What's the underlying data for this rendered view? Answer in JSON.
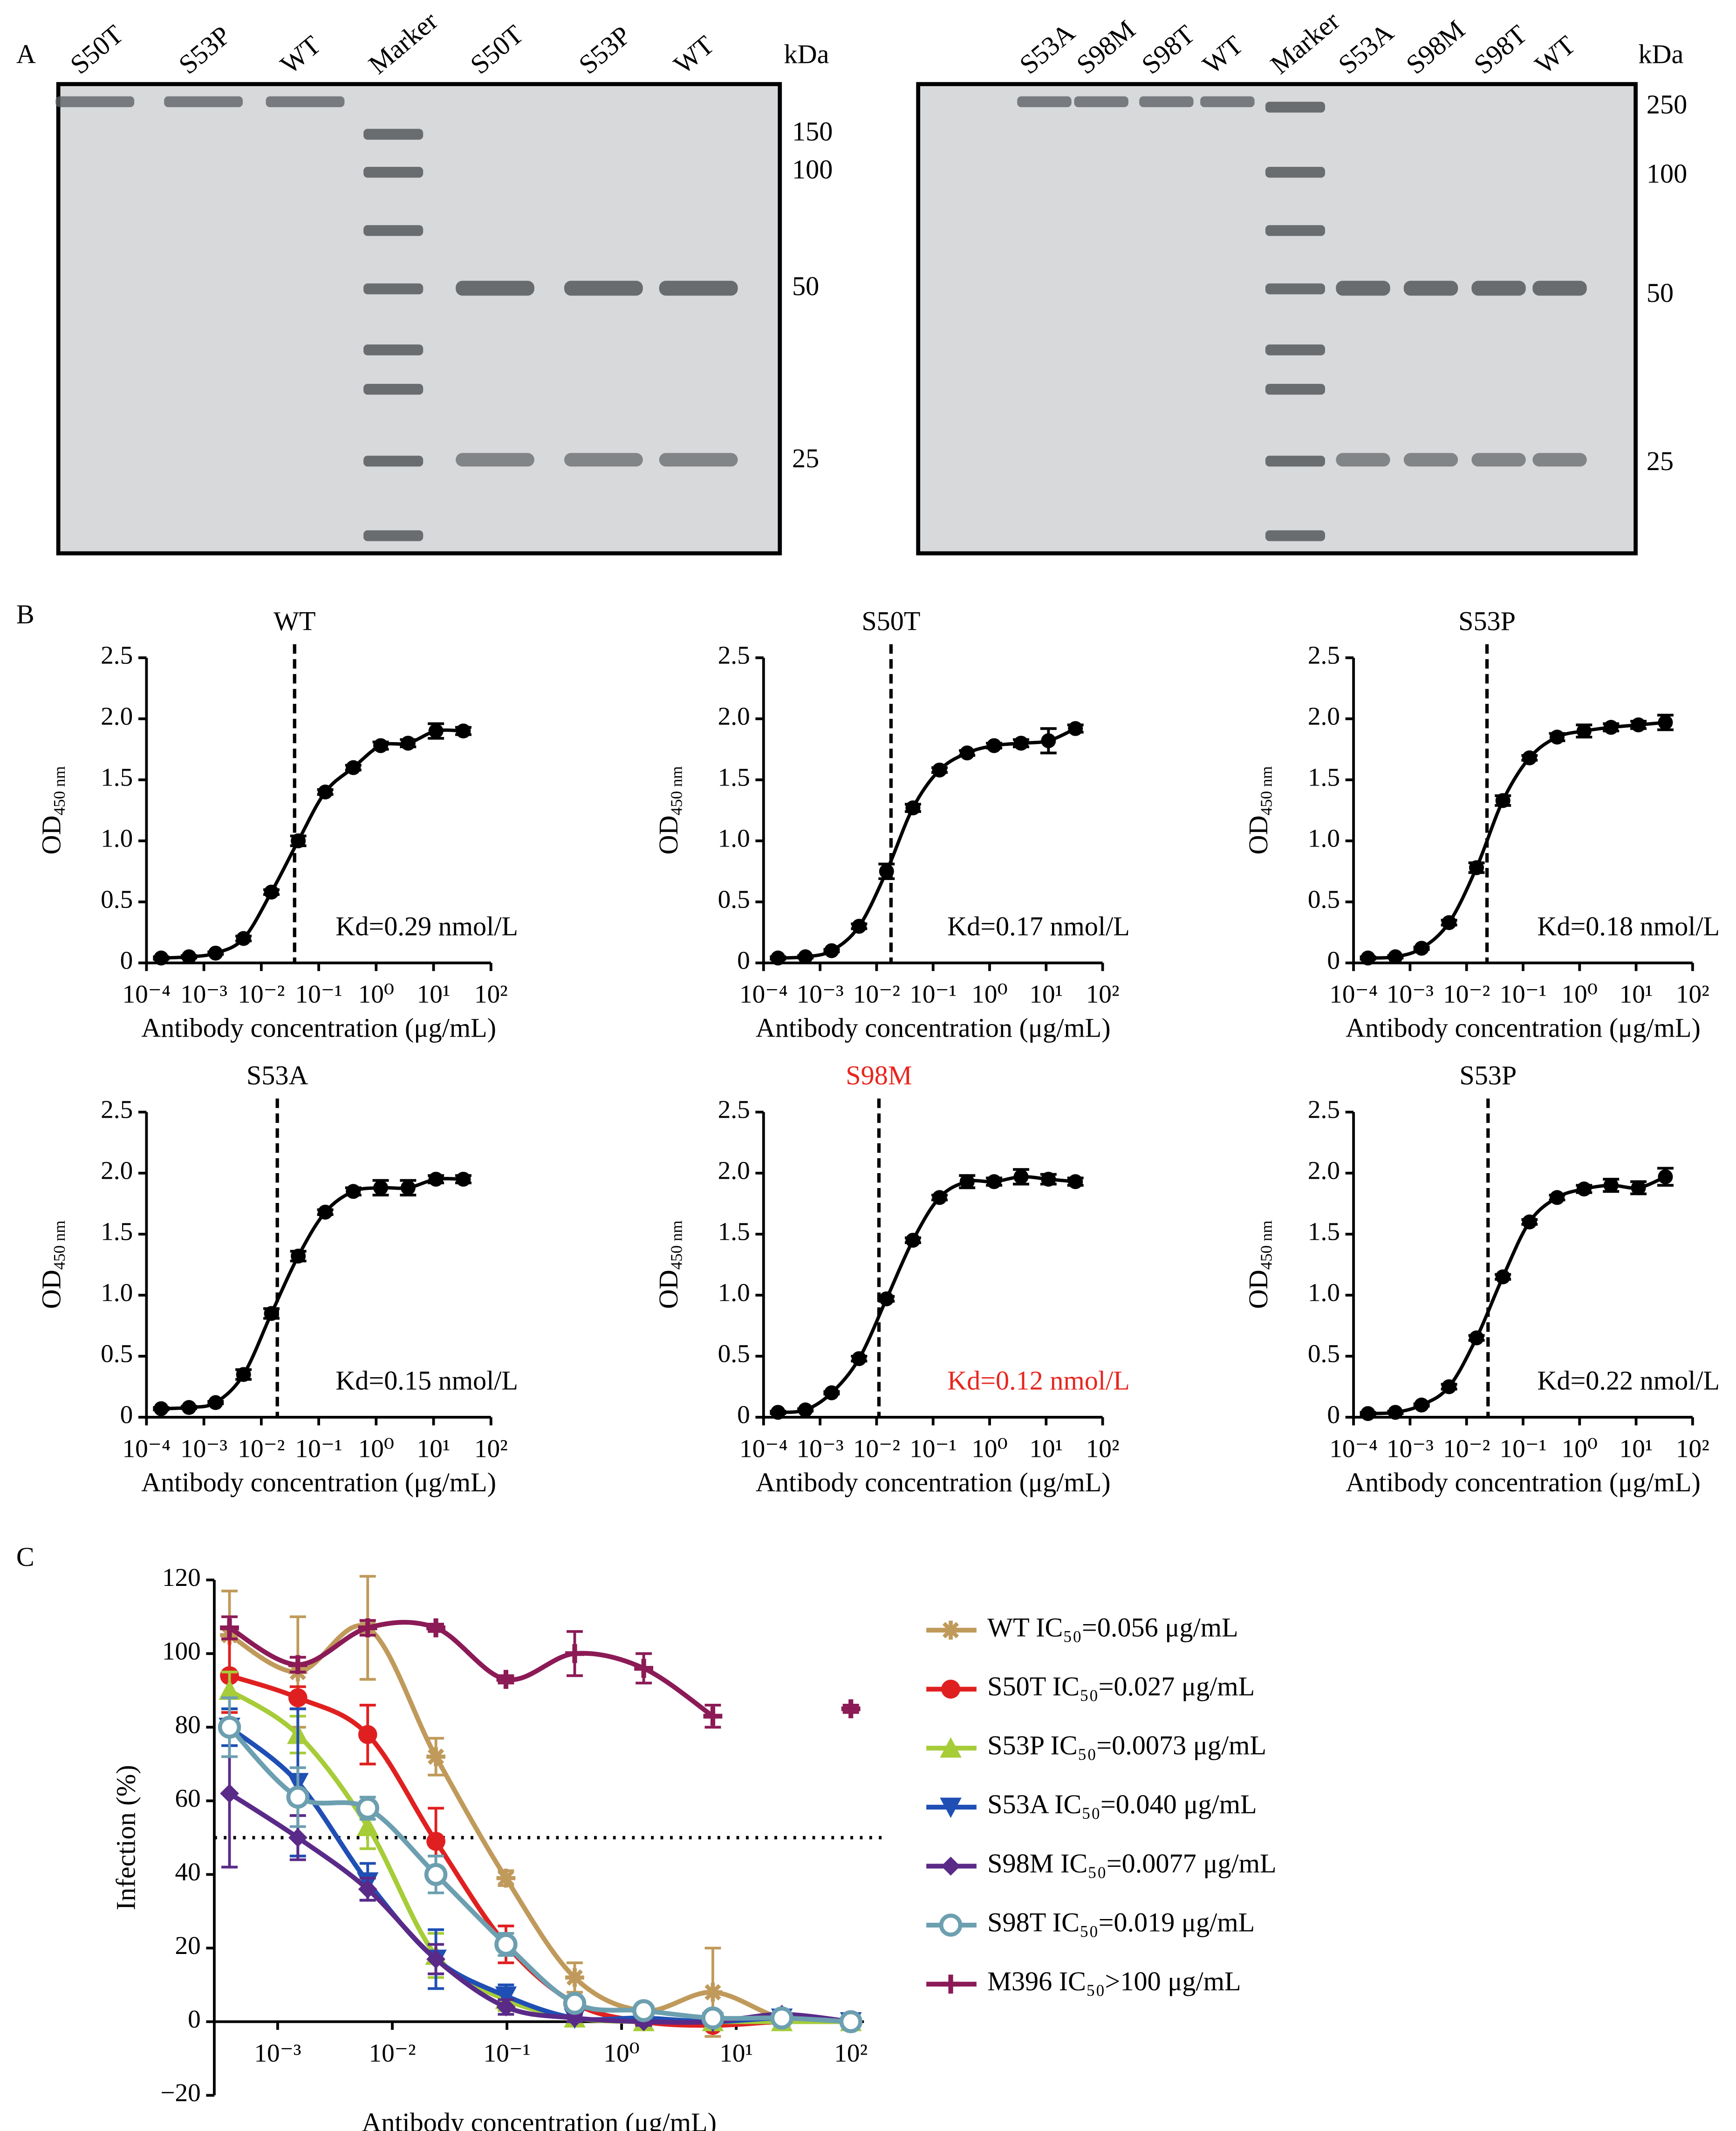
{
  "panel_labels": [
    "A",
    "B",
    "C"
  ],
  "gels": [
    {
      "lanes": [
        "S50T",
        "S53P",
        "WT",
        "Marker",
        "S50T",
        "S53P",
        "WT"
      ],
      "unit": "kDa",
      "markers": [
        150,
        100,
        50,
        25
      ]
    },
    {
      "lanes": [
        "S53A",
        "S98M",
        "S98T",
        "WT",
        "Marker",
        "S53A",
        "S98M",
        "S98T",
        "WT"
      ],
      "unit": "kDa",
      "markers": [
        250,
        100,
        50,
        25
      ]
    }
  ],
  "chart_data": [
    {
      "type": "line",
      "title": "WT",
      "text_color": "#000000",
      "annotation": "Kd=0.29 nmol/L",
      "xlabel": "Antibody concentration (μg/mL)",
      "ylabel": "OD",
      "ylabel_subscript": "450 nm",
      "log_x": true,
      "xlim": [
        0.0001,
        100
      ],
      "xticks": [
        {
          "value": 0.0001,
          "label": "10⁻⁴"
        },
        {
          "value": 0.001,
          "label": "10⁻³"
        },
        {
          "value": 0.01,
          "label": "10⁻²"
        },
        {
          "value": 0.1,
          "label": "10⁻¹"
        },
        {
          "value": 1,
          "label": "10⁰"
        },
        {
          "value": 10,
          "label": "10¹"
        },
        {
          "value": 100,
          "label": "10²"
        }
      ],
      "ylim": [
        0,
        2.5
      ],
      "yticks": [
        0,
        0.5,
        {
          "value": 1,
          "label": "1.0"
        },
        1.5,
        {
          "value": 2,
          "label": "2.0"
        },
        2.5
      ],
      "vline": 0.038,
      "color": "#000000",
      "marker": "dot",
      "x": [
        0.00018,
        0.00055,
        0.0016,
        0.0049,
        0.015,
        0.044,
        0.13,
        0.4,
        1.2,
        3.6,
        11,
        33
      ],
      "values": [
        0.04,
        0.05,
        0.08,
        0.2,
        0.58,
        1.0,
        1.4,
        1.6,
        1.78,
        1.8,
        1.9,
        1.9
      ],
      "errors": [
        0.01,
        0.01,
        0.01,
        0.02,
        0.02,
        0.04,
        0.02,
        0.02,
        0.03,
        0.03,
        0.06,
        0.03
      ]
    },
    {
      "type": "line",
      "title": "S50T",
      "text_color": "#000000",
      "annotation": "Kd=0.17 nmol/L",
      "xlabel": "Antibody concentration (μg/mL)",
      "ylabel": "OD",
      "ylabel_subscript": "450 nm",
      "log_x": true,
      "xlim": [
        0.0001,
        100
      ],
      "xticks": [
        {
          "value": 0.0001,
          "label": "10⁻⁴"
        },
        {
          "value": 0.001,
          "label": "10⁻³"
        },
        {
          "value": 0.01,
          "label": "10⁻²"
        },
        {
          "value": 0.1,
          "label": "10⁻¹"
        },
        {
          "value": 1,
          "label": "10⁰"
        },
        {
          "value": 10,
          "label": "10¹"
        },
        {
          "value": 100,
          "label": "10²"
        }
      ],
      "ylim": [
        0,
        2.5
      ],
      "yticks": [
        0,
        0.5,
        {
          "value": 1,
          "label": "1.0"
        },
        1.5,
        {
          "value": 2,
          "label": "2.0"
        },
        2.5
      ],
      "vline": 0.018,
      "color": "#000000",
      "marker": "dot",
      "x": [
        0.00018,
        0.00055,
        0.0016,
        0.0049,
        0.015,
        0.044,
        0.13,
        0.4,
        1.2,
        3.6,
        11,
        33
      ],
      "values": [
        0.04,
        0.05,
        0.1,
        0.3,
        0.75,
        1.27,
        1.58,
        1.72,
        1.78,
        1.8,
        1.82,
        1.92
      ],
      "errors": [
        0.01,
        0.01,
        0.01,
        0.02,
        0.06,
        0.03,
        0.02,
        0.02,
        0.02,
        0.03,
        0.1,
        0.03
      ]
    },
    {
      "type": "line",
      "title": "S53P",
      "text_color": "#000000",
      "annotation": "Kd=0.18 nmol/L",
      "xlabel": "Antibody concentration (μg/mL)",
      "ylabel": "OD",
      "ylabel_subscript": "450 nm",
      "log_x": true,
      "xlim": [
        0.0001,
        100
      ],
      "xticks": [
        {
          "value": 0.0001,
          "label": "10⁻⁴"
        },
        {
          "value": 0.001,
          "label": "10⁻³"
        },
        {
          "value": 0.01,
          "label": "10⁻²"
        },
        {
          "value": 0.1,
          "label": "10⁻¹"
        },
        {
          "value": 1,
          "label": "10⁰"
        },
        {
          "value": 10,
          "label": "10¹"
        },
        {
          "value": 100,
          "label": "10²"
        }
      ],
      "ylim": [
        0,
        2.5
      ],
      "yticks": [
        0,
        0.5,
        {
          "value": 1,
          "label": "1.0"
        },
        1.5,
        {
          "value": 2,
          "label": "2.0"
        },
        2.5
      ],
      "vline": 0.023,
      "color": "#000000",
      "marker": "dot",
      "x": [
        0.00018,
        0.00055,
        0.0016,
        0.0049,
        0.015,
        0.044,
        0.13,
        0.4,
        1.2,
        3.6,
        11,
        33
      ],
      "values": [
        0.04,
        0.05,
        0.12,
        0.33,
        0.78,
        1.33,
        1.68,
        1.85,
        1.9,
        1.93,
        1.95,
        1.97
      ],
      "errors": [
        0.01,
        0.01,
        0.01,
        0.02,
        0.04,
        0.04,
        0.02,
        0.03,
        0.05,
        0.03,
        0.03,
        0.06
      ]
    },
    {
      "type": "line",
      "title": "S53A",
      "text_color": "#000000",
      "annotation": "Kd=0.15 nmol/L",
      "xlabel": "Antibody concentration (μg/mL)",
      "ylabel": "OD",
      "ylabel_subscript": "450 nm",
      "log_x": true,
      "xlim": [
        0.0001,
        100
      ],
      "xticks": [
        {
          "value": 0.0001,
          "label": "10⁻⁴"
        },
        {
          "value": 0.001,
          "label": "10⁻³"
        },
        {
          "value": 0.01,
          "label": "10⁻²"
        },
        {
          "value": 0.1,
          "label": "10⁻¹"
        },
        {
          "value": 1,
          "label": "10⁰"
        },
        {
          "value": 10,
          "label": "10¹"
        },
        {
          "value": 100,
          "label": "10²"
        }
      ],
      "ylim": [
        0,
        2.5
      ],
      "yticks": [
        0,
        0.5,
        {
          "value": 1,
          "label": "1.0"
        },
        1.5,
        {
          "value": 2,
          "label": "2.0"
        },
        2.5
      ],
      "vline": 0.019,
      "color": "#000000",
      "marker": "dot",
      "x": [
        0.00018,
        0.00055,
        0.0016,
        0.0049,
        0.015,
        0.044,
        0.13,
        0.4,
        1.2,
        3.6,
        11,
        33
      ],
      "values": [
        0.07,
        0.08,
        0.12,
        0.35,
        0.85,
        1.32,
        1.68,
        1.85,
        1.88,
        1.88,
        1.95,
        1.95
      ],
      "errors": [
        0.01,
        0.01,
        0.01,
        0.04,
        0.04,
        0.04,
        0.02,
        0.03,
        0.06,
        0.06,
        0.03,
        0.03
      ]
    },
    {
      "type": "line",
      "title": "S98M",
      "text_color": "#e8251f",
      "annotation": "Kd=0.12 nmol/L",
      "xlabel": "Antibody concentration (μg/mL)",
      "ylabel": "OD",
      "ylabel_subscript": "450 nm",
      "log_x": true,
      "xlim": [
        0.0001,
        100
      ],
      "xticks": [
        {
          "value": 0.0001,
          "label": "10⁻⁴"
        },
        {
          "value": 0.001,
          "label": "10⁻³"
        },
        {
          "value": 0.01,
          "label": "10⁻²"
        },
        {
          "value": 0.1,
          "label": "10⁻¹"
        },
        {
          "value": 1,
          "label": "10⁰"
        },
        {
          "value": 10,
          "label": "10¹"
        },
        {
          "value": 100,
          "label": "10²"
        }
      ],
      "ylim": [
        0,
        2.5
      ],
      "yticks": [
        0,
        0.5,
        {
          "value": 1,
          "label": "1.0"
        },
        1.5,
        {
          "value": 2,
          "label": "2.0"
        },
        2.5
      ],
      "vline": 0.011,
      "color": "#000000",
      "marker": "dot",
      "x": [
        0.00018,
        0.00055,
        0.0016,
        0.0049,
        0.015,
        0.044,
        0.13,
        0.4,
        1.2,
        3.6,
        11,
        33
      ],
      "values": [
        0.04,
        0.06,
        0.2,
        0.48,
        0.97,
        1.45,
        1.8,
        1.93,
        1.93,
        1.97,
        1.95,
        1.93
      ],
      "errors": [
        0.01,
        0.01,
        0.01,
        0.02,
        0.02,
        0.02,
        0.02,
        0.05,
        0.03,
        0.06,
        0.04,
        0.03
      ]
    },
    {
      "type": "line",
      "title": "S53P",
      "text_color": "#000000",
      "annotation": "Kd=0.22 nmol/L",
      "xlabel": "Antibody concentration (μg/mL)",
      "ylabel": "OD",
      "ylabel_subscript": "450 nm",
      "log_x": true,
      "xlim": [
        0.0001,
        100
      ],
      "xticks": [
        {
          "value": 0.0001,
          "label": "10⁻⁴"
        },
        {
          "value": 0.001,
          "label": "10⁻³"
        },
        {
          "value": 0.01,
          "label": "10⁻²"
        },
        {
          "value": 0.1,
          "label": "10⁻¹"
        },
        {
          "value": 1,
          "label": "10⁰"
        },
        {
          "value": 10,
          "label": "10¹"
        },
        {
          "value": 100,
          "label": "10²"
        }
      ],
      "ylim": [
        0,
        2.5
      ],
      "yticks": [
        0,
        0.5,
        {
          "value": 1,
          "label": "1.0"
        },
        1.5,
        {
          "value": 2,
          "label": "2.0"
        },
        2.5
      ],
      "vline": 0.024,
      "color": "#000000",
      "marker": "dot",
      "x": [
        0.00018,
        0.00055,
        0.0016,
        0.0049,
        0.015,
        0.044,
        0.13,
        0.4,
        1.2,
        3.6,
        11,
        33
      ],
      "values": [
        0.03,
        0.04,
        0.1,
        0.25,
        0.65,
        1.15,
        1.6,
        1.8,
        1.87,
        1.9,
        1.88,
        1.97
      ],
      "errors": [
        0.01,
        0.01,
        0.01,
        0.02,
        0.02,
        0.02,
        0.02,
        0.02,
        0.03,
        0.05,
        0.05,
        0.07
      ]
    },
    {
      "type": "line",
      "xlabel": "Antibody concentration (μg/mL)",
      "ylabel": "Infection (%)",
      "log_x": true,
      "xlim": [
        0.00028,
        130
      ],
      "xticks": [
        {
          "value": 0.001,
          "label": "10⁻³"
        },
        {
          "value": 0.01,
          "label": "10⁻²"
        },
        {
          "value": 0.1,
          "label": "10⁻¹"
        },
        {
          "value": 1,
          "label": "10⁰"
        },
        {
          "value": 10,
          "label": "10¹"
        },
        {
          "value": 100,
          "label": "10²"
        }
      ],
      "ylim": [
        -20,
        120
      ],
      "yticks": [
        {
          "value": -20,
          "label": "−20"
        },
        0,
        20,
        40,
        60,
        80,
        100,
        120
      ],
      "hline": 50,
      "legend": "right",
      "x": [
        0.00038,
        0.0015,
        0.0061,
        0.024,
        0.098,
        0.39,
        1.56,
        6.25,
        25,
        100
      ],
      "series": [
        {
          "name": "WT IC₅₀=0.056 μg/mL",
          "color": "#c09a5b",
          "marker": "asterisk",
          "values": [
            105,
            95,
            107,
            72,
            39,
            12,
            3,
            8,
            1,
            0
          ],
          "errors": [
            12,
            15,
            14,
            5,
            2,
            4,
            2,
            12,
            1,
            1
          ]
        },
        {
          "name": "S50T IC₅₀=0.027 μg/mL",
          "color": "#e02020",
          "marker": "circle",
          "values": [
            94,
            88,
            78,
            49,
            21,
            5,
            0,
            -1,
            0,
            0
          ],
          "errors": [
            10,
            3,
            8,
            9,
            5,
            2,
            1,
            1,
            1,
            1
          ]
        },
        {
          "name": "S53P IC₅₀=0.0073 μg/mL",
          "color": "#a6cc38",
          "marker": "triangle-up",
          "values": [
            90,
            78,
            53,
            18,
            6,
            1,
            0,
            0,
            0,
            0
          ],
          "errors": [
            5,
            5,
            6,
            6,
            3,
            1,
            1,
            1,
            1,
            1
          ]
        },
        {
          "name": "S53A IC₅₀=0.040 μg/mL",
          "color": "#1f4fb5",
          "marker": "triangle-down",
          "values": [
            80,
            65,
            38,
            17,
            7,
            1,
            1,
            0,
            1,
            0
          ],
          "errors": [
            5,
            20,
            5,
            8,
            3,
            1,
            1,
            1,
            1,
            1
          ]
        },
        {
          "name": "S98M IC₅₀=0.0077 μg/mL",
          "color": "#5a2a88",
          "marker": "diamond",
          "values": [
            62,
            50,
            36,
            17,
            4,
            1,
            0,
            0,
            2,
            0
          ],
          "errors": [
            20,
            6,
            3,
            4,
            2,
            1,
            1,
            1,
            1,
            1
          ]
        },
        {
          "name": "S98T IC₅₀=0.019 μg/mL",
          "color": "#6c9fb0",
          "marker": "open-circle",
          "values": [
            80,
            61,
            58,
            40,
            21,
            5,
            3,
            1,
            1,
            0
          ],
          "errors": [
            8,
            8,
            3,
            5,
            3,
            2,
            1,
            1,
            1,
            1
          ]
        },
        {
          "name": "M396 IC₅₀>100 μg/mL",
          "color": "#8b1a56",
          "marker": "plus",
          "values": [
            107,
            97,
            107,
            107,
            93,
            100,
            96,
            83,
            null,
            85
          ],
          "errors": [
            3,
            2,
            2,
            1,
            1,
            6,
            4,
            3,
            null,
            1
          ]
        }
      ]
    }
  ]
}
